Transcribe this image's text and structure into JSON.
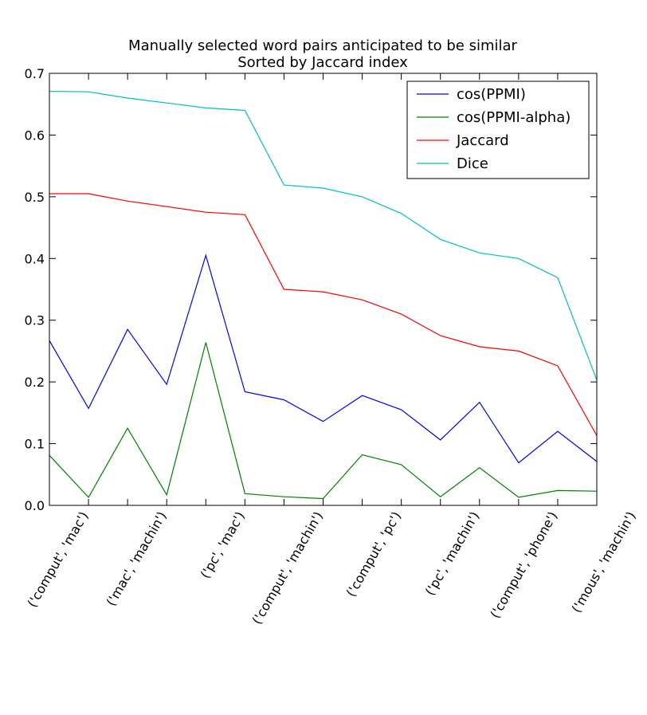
{
  "chart_data": {
    "type": "line",
    "title": [
      "Manually selected word pairs anticipated to be similar",
      "Sorted by Jaccard index"
    ],
    "ylim": [
      0,
      0.7
    ],
    "yticks": [
      "0.0",
      "0.1",
      "0.2",
      "0.3",
      "0.4",
      "0.5",
      "0.6",
      "0.7"
    ],
    "xlabels": [
      "('comput', 'mac')",
      "('mac', 'machin')",
      "('pc', 'mac')",
      "('comput', 'machin')",
      "('comput', 'pc')",
      "('pc', 'machin')",
      "('comput', 'phone')",
      "('mous', 'machin')"
    ],
    "xlabel_indices": [
      1,
      3,
      5,
      7,
      9,
      11,
      13,
      15
    ],
    "x": [
      0,
      1,
      2,
      3,
      4,
      5,
      6,
      7,
      8,
      9,
      10,
      11,
      12,
      13,
      14
    ],
    "legend_position": "top-right",
    "series": [
      {
        "name": "cos(PPMI)",
        "color": "#0000ff",
        "values": [
          0.267,
          0.157,
          0.285,
          0.196,
          0.405,
          0.184,
          0.171,
          0.136,
          0.178,
          0.155,
          0.106,
          0.167,
          0.069,
          0.12,
          0.071
        ]
      },
      {
        "name": "cos(PPMI-alpha)",
        "color": "#008000",
        "values": [
          0.081,
          0.013,
          0.125,
          0.017,
          0.264,
          0.019,
          0.014,
          0.011,
          0.082,
          0.066,
          0.014,
          0.061,
          0.013,
          0.024,
          0.023
        ]
      },
      {
        "name": " Jaccard",
        "color": "#ff0000",
        "values": [
          0.505,
          0.505,
          0.493,
          0.484,
          0.475,
          0.471,
          0.35,
          0.346,
          0.333,
          0.31,
          0.275,
          0.257,
          0.25,
          0.226,
          0.113
        ]
      },
      {
        "name": "Dice",
        "color": "#00bfbf",
        "values": [
          0.671,
          0.67,
          0.66,
          0.652,
          0.644,
          0.64,
          0.519,
          0.514,
          0.5,
          0.473,
          0.431,
          0.409,
          0.4,
          0.369,
          0.203
        ]
      }
    ]
  }
}
